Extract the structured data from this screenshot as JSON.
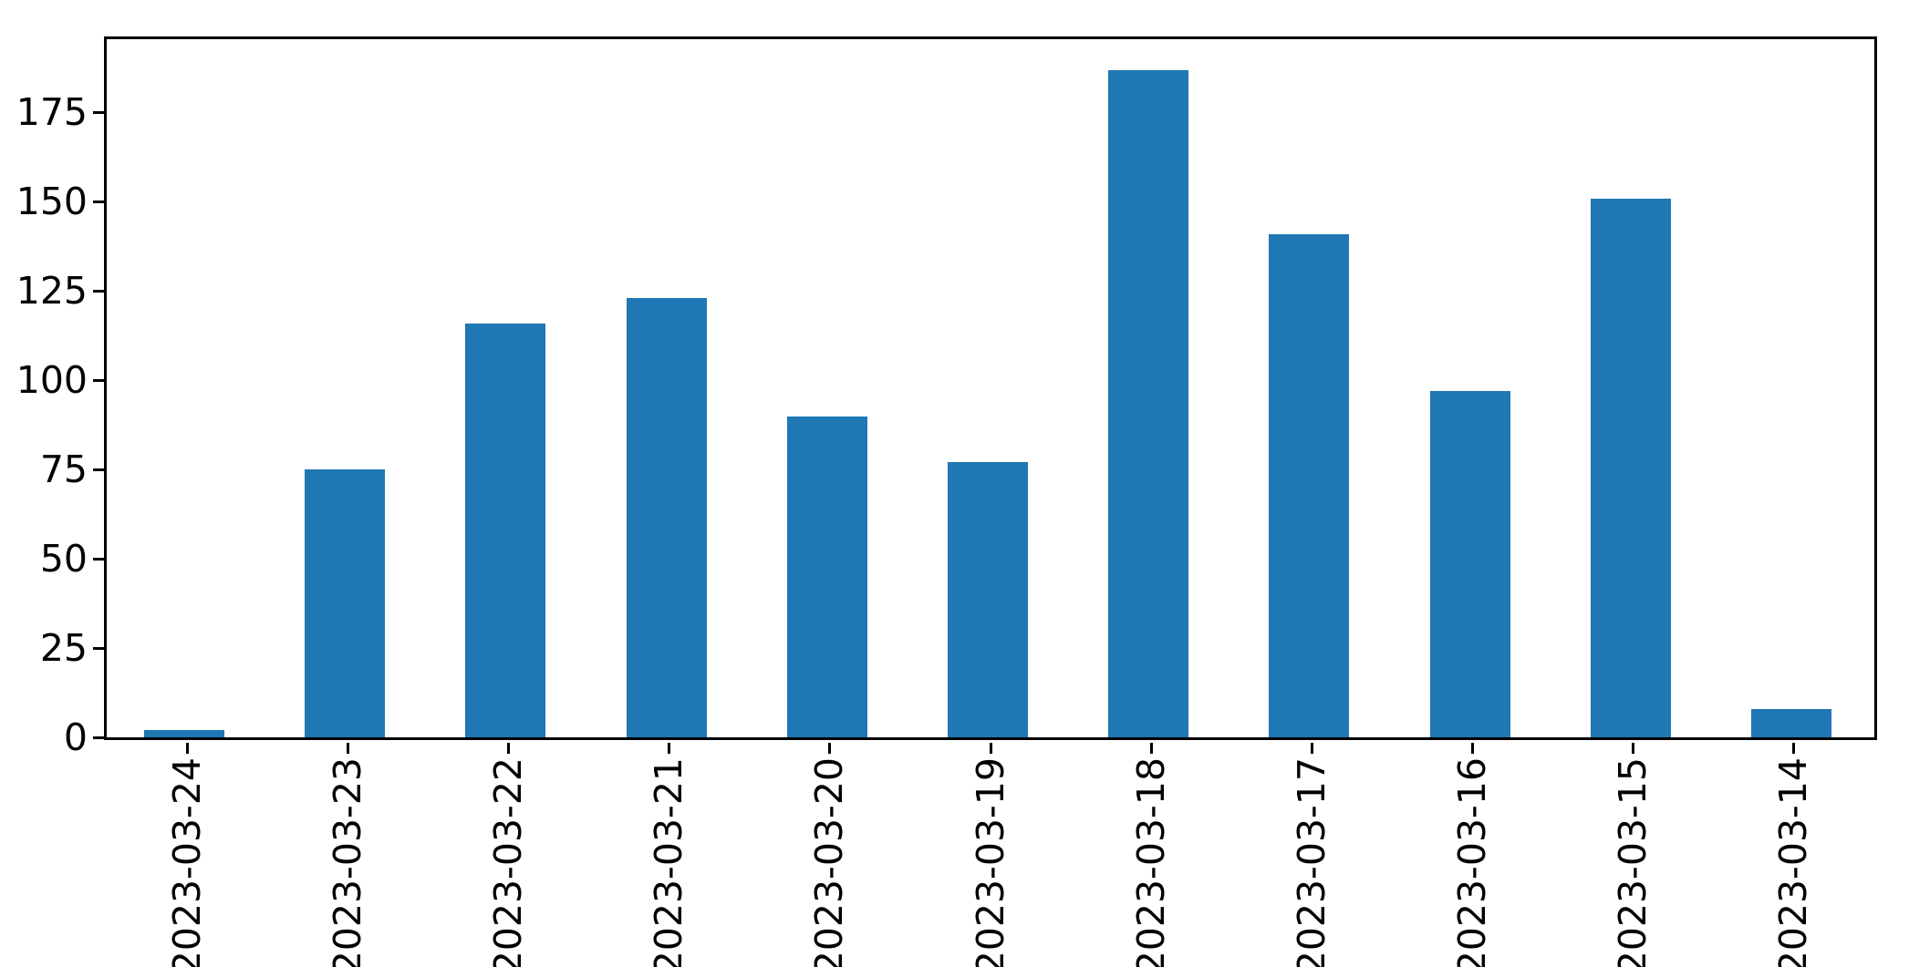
{
  "chart_data": {
    "type": "bar",
    "title": "",
    "xlabel": "",
    "ylabel": "",
    "categories": [
      "2023-03-24",
      "2023-03-23",
      "2023-03-22",
      "2023-03-21",
      "2023-03-20",
      "2023-03-19",
      "2023-03-18",
      "2023-03-17",
      "2023-03-16",
      "2023-03-15",
      "2023-03-14"
    ],
    "values": [
      2,
      75,
      116,
      123,
      90,
      77,
      187,
      141,
      97,
      151,
      8
    ],
    "yticks": [
      0,
      25,
      50,
      75,
      100,
      125,
      150,
      175
    ],
    "ylim": [
      0,
      195.6
    ],
    "bar_color": "#1f77b4",
    "bar_width_fraction": 0.5,
    "x_tick_rotation_deg": 90,
    "grid": false,
    "legend_position": "none",
    "frame": "full-box"
  }
}
